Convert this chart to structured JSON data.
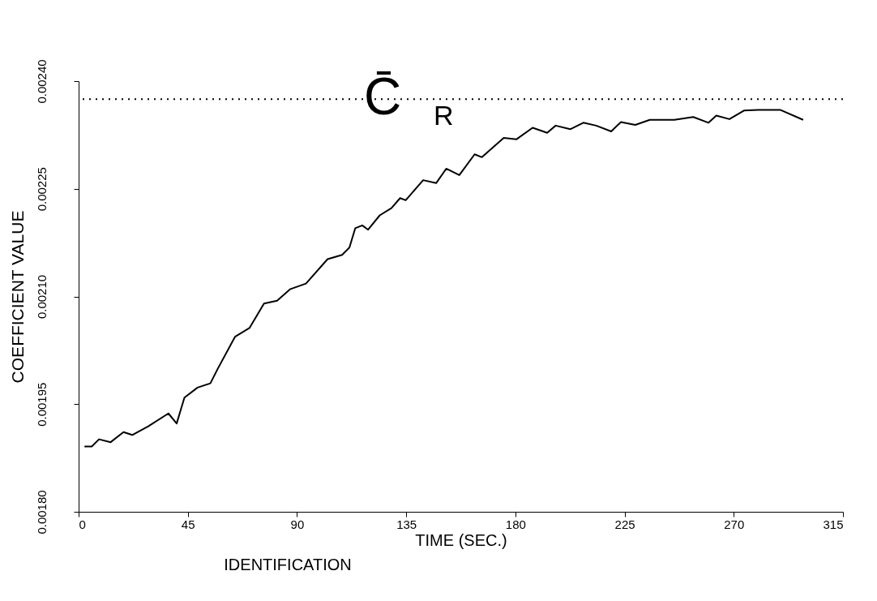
{
  "chart_data": {
    "type": "line",
    "xlabel": "TIME (SEC.)",
    "ylabel": "COEFFICIENT VALUE",
    "xlim": [
      0,
      315
    ],
    "xticks": [
      0,
      45,
      90,
      135,
      180,
      225,
      270,
      315
    ],
    "ylim": [
      0.0018,
      0.0024
    ],
    "yticks": [
      {
        "value": 0.0018,
        "label": "0.00180"
      },
      {
        "value": 0.00195,
        "label": "0.00195"
      },
      {
        "value": 0.0021,
        "label": "0.00210"
      },
      {
        "value": 0.00225,
        "label": "0.00225"
      },
      {
        "value": 0.0024,
        "label": "0.00240"
      }
    ],
    "grid": false,
    "marker": "none",
    "line_style": "solid",
    "ref_lines": [
      {
        "axis": "y",
        "value": 0.002375,
        "label": "C̄$_{R}$",
        "line_style": "dotted"
      }
    ],
    "annotations": [
      "IDENTIFICATION"
    ],
    "series": [
      {
        "color": "#000000",
        "x": [
          2.4,
          5.4,
          8.4,
          13.2,
          18.5,
          22.1,
          28.7,
          37.0,
          40.4,
          43.6,
          49.0,
          54.3,
          57.3,
          64.5,
          70.4,
          76.4,
          81.8,
          87.1,
          93.7,
          102.6,
          108.6,
          111.6,
          114.0,
          116.9,
          119.3,
          124.1,
          128.9,
          132.5,
          134.8,
          142.0,
          147.4,
          151.5,
          156.9,
          163.2,
          166.2,
          175.2,
          180.5,
          187.1,
          193.1,
          196.6,
          202.6,
          208.0,
          213.3,
          219.5,
          223.5,
          229.4,
          235.4,
          245.5,
          253.3,
          259.6,
          262.8,
          268.2,
          274.2,
          280.1,
          289.1,
          298.6
        ],
        "values": [
          0.001891,
          0.001891,
          0.001901,
          0.001897,
          0.001911,
          0.001907,
          0.001919,
          0.001937,
          0.001923,
          0.001959,
          0.001973,
          0.001979,
          0.001999,
          0.002044,
          0.002056,
          0.00209,
          0.002094,
          0.00211,
          0.002118,
          0.002152,
          0.002158,
          0.002168,
          0.002195,
          0.002199,
          0.002193,
          0.002213,
          0.002223,
          0.002237,
          0.002234,
          0.002262,
          0.002258,
          0.002278,
          0.002269,
          0.002298,
          0.002294,
          0.002321,
          0.002319,
          0.002335,
          0.002328,
          0.002338,
          0.002333,
          0.002342,
          0.002338,
          0.00233,
          0.002343,
          0.002339,
          0.002346,
          0.002346,
          0.00235,
          0.002342,
          0.002352,
          0.002347,
          0.002359,
          0.00236,
          0.00236,
          0.002346
        ]
      }
    ]
  }
}
